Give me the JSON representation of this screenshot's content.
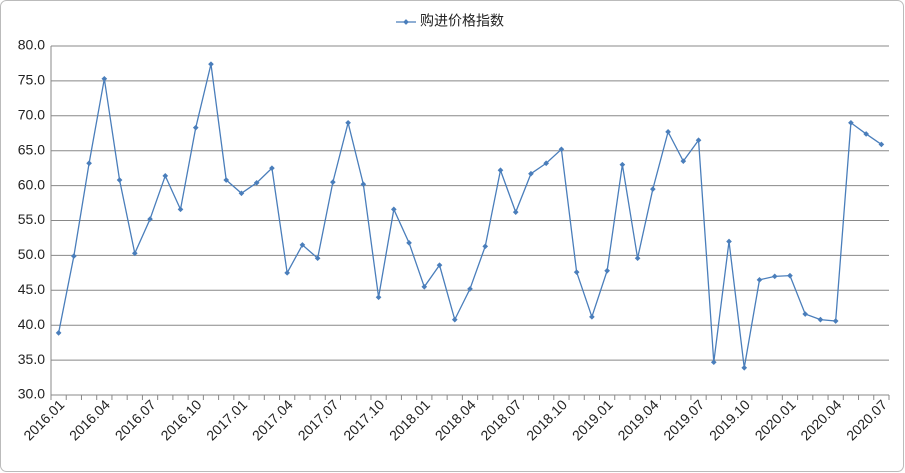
{
  "chart_data": {
    "type": "line",
    "categories": [
      "2016.01",
      null,
      null,
      "2016.04",
      null,
      null,
      "2016.07",
      null,
      null,
      "2016.10",
      null,
      null,
      "2017.01",
      null,
      null,
      "2017.04",
      null,
      null,
      "2017.07",
      null,
      null,
      "2017.10",
      null,
      null,
      "2018.01",
      null,
      null,
      "2018.04",
      null,
      null,
      "2018.07",
      null,
      null,
      "2018.10",
      null,
      null,
      "2019.01",
      null,
      null,
      "2019.04",
      null,
      null,
      "2019.07",
      null,
      null,
      "2019.10",
      null,
      null,
      "2020.01",
      null,
      null,
      "2020.04",
      null,
      null,
      "2020.07"
    ],
    "series": [
      {
        "name": "购进价格指数",
        "color": "#4a7ebb",
        "values": [
          38.9,
          49.9,
          63.2,
          75.3,
          60.8,
          50.3,
          55.2,
          61.4,
          56.6,
          68.3,
          77.4,
          60.8,
          58.9,
          60.4,
          62.5,
          47.5,
          51.5,
          49.6,
          60.5,
          69.0,
          60.2,
          44.0,
          56.6,
          51.8,
          45.5,
          48.6,
          40.8,
          45.2,
          51.3,
          62.2,
          56.2,
          61.7,
          63.2,
          65.2,
          47.6,
          41.2,
          47.8,
          63.0,
          49.6,
          59.5,
          67.7,
          63.5,
          66.5,
          34.7,
          52.0,
          33.9,
          46.5,
          47.0,
          47.1,
          41.6,
          40.8,
          40.6,
          69.0,
          67.4,
          65.9
        ]
      }
    ],
    "ylim": [
      30,
      80
    ],
    "yticks": [
      {
        "value": 30,
        "label": "30.0"
      },
      {
        "value": 35,
        "label": "35.0"
      },
      {
        "value": 40,
        "label": "40.0"
      },
      {
        "value": 45,
        "label": "45.0"
      },
      {
        "value": 50,
        "label": "50.0"
      },
      {
        "value": 55,
        "label": "55.0"
      },
      {
        "value": 60,
        "label": "60.0"
      },
      {
        "value": 65,
        "label": "65.0"
      },
      {
        "value": 70,
        "label": "70.0"
      },
      {
        "value": 75,
        "label": "75.0"
      },
      {
        "value": 80,
        "label": "80.0"
      }
    ],
    "grid": true,
    "legend": "top"
  }
}
